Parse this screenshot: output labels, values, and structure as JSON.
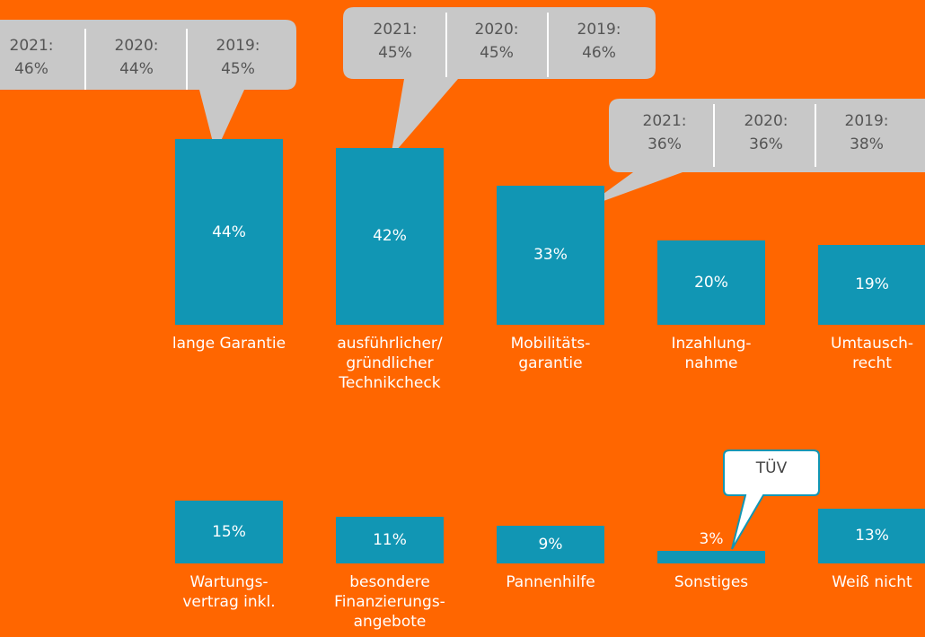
{
  "chart_data": {
    "type": "bar",
    "categories": [
      "lange Garantie",
      "ausführlicher/\ngründlicher\nTechnikcheck",
      "Mobilitäts-\ngarantie",
      "Inzahlung-\nnahme",
      "Umtausch-\nrecht",
      "Wartungs-\nvertrag inkl.",
      "besondere\nFinanzierungs-\nangebote",
      "Pannenhilfe",
      "Sonstiges",
      "Weiß nicht"
    ],
    "values": [
      44,
      42,
      33,
      20,
      19,
      15,
      11,
      9,
      3,
      13
    ],
    "value_labels": [
      "44%",
      "42%",
      "33%",
      "20%",
      "19%",
      "15%",
      "11%",
      "9%",
      "3%",
      "13%"
    ],
    "color": "#1196b4",
    "callouts": [
      {
        "entries": [
          {
            "year": "2021:",
            "value": "46%"
          },
          {
            "year": "2020:",
            "value": "44%"
          },
          {
            "year": "2019:",
            "value": "45%"
          }
        ]
      },
      {
        "entries": [
          {
            "year": "2021:",
            "value": "45%"
          },
          {
            "year": "2020:",
            "value": "45%"
          },
          {
            "year": "2019:",
            "value": "46%"
          }
        ]
      },
      {
        "entries": [
          {
            "year": "2021:",
            "value": "36%"
          },
          {
            "year": "2020:",
            "value": "36%"
          },
          {
            "year": "2019:",
            "value": "38%"
          }
        ]
      }
    ],
    "annotation": "TÜV"
  }
}
